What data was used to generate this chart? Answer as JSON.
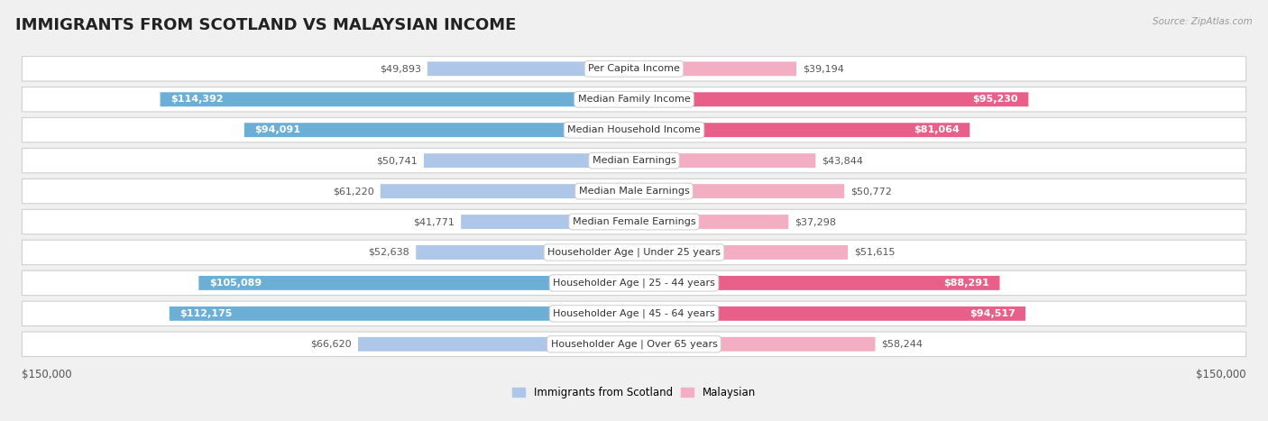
{
  "title": "IMMIGRANTS FROM SCOTLAND VS MALAYSIAN INCOME",
  "source": "Source: ZipAtlas.com",
  "categories": [
    "Per Capita Income",
    "Median Family Income",
    "Median Household Income",
    "Median Earnings",
    "Median Male Earnings",
    "Median Female Earnings",
    "Householder Age | Under 25 years",
    "Householder Age | 25 - 44 years",
    "Householder Age | 45 - 64 years",
    "Householder Age | Over 65 years"
  ],
  "scotland_values": [
    49893,
    114392,
    94091,
    50741,
    61220,
    41771,
    52638,
    105089,
    112175,
    66620
  ],
  "malaysia_values": [
    39194,
    95230,
    81064,
    43844,
    50772,
    37298,
    51615,
    88291,
    94517,
    58244
  ],
  "scotland_labels": [
    "$49,893",
    "$114,392",
    "$94,091",
    "$50,741",
    "$61,220",
    "$41,771",
    "$52,638",
    "$105,089",
    "$112,175",
    "$66,620"
  ],
  "malaysia_labels": [
    "$39,194",
    "$95,230",
    "$81,064",
    "$43,844",
    "$50,772",
    "$37,298",
    "$51,615",
    "$88,291",
    "$94,517",
    "$58,244"
  ],
  "scotland_color_light": "#aec6e8",
  "scotland_color_dark": "#6baed6",
  "malaysia_color_light": "#f4aec4",
  "malaysia_color_dark": "#e8608a",
  "max_value": 150000,
  "background_color": "#f0f0f0",
  "row_bg_color": "#ffffff",
  "title_fontsize": 13,
  "label_fontsize": 8,
  "category_fontsize": 8,
  "large_threshold": 80000
}
